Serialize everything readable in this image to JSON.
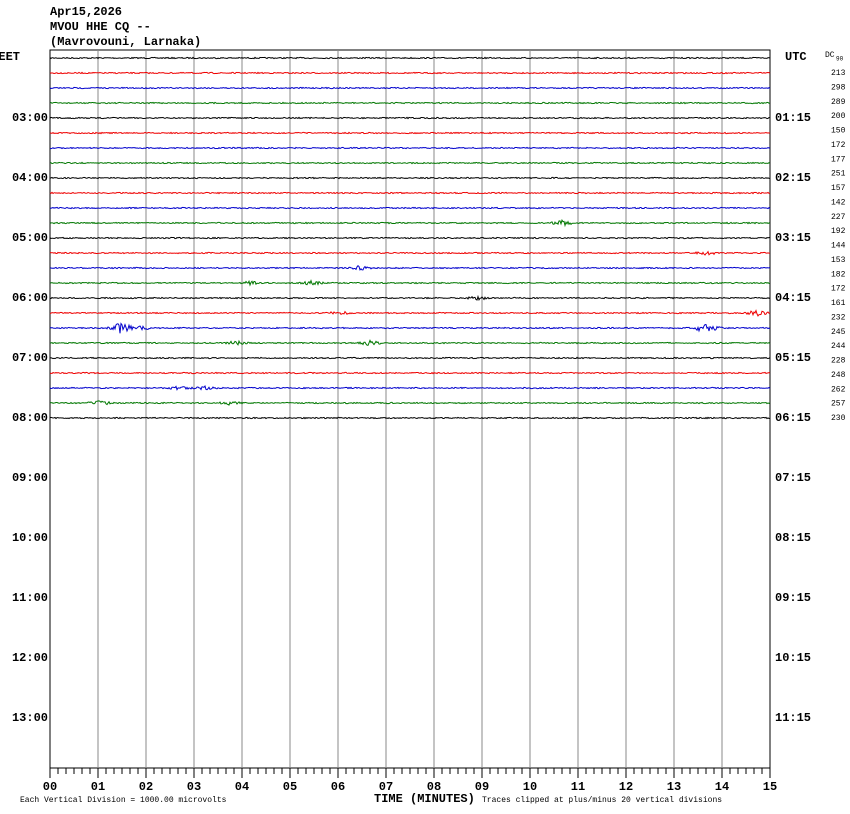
{
  "header": {
    "date": "Apr15,2026",
    "station": "MVOU HHE CQ --",
    "location": "(Mavrovouni, Larnaka)"
  },
  "left_axis": {
    "title": "EET",
    "labels": [
      "03:00",
      "04:00",
      "05:00",
      "06:00",
      "07:00",
      "08:00",
      "09:00",
      "10:00",
      "11:00",
      "12:00",
      "13:00"
    ]
  },
  "right_axis": {
    "title": "UTC",
    "labels": [
      "01:15",
      "02:15",
      "03:15",
      "04:15",
      "05:15",
      "06:15",
      "07:15",
      "08:15",
      "09:15",
      "10:15",
      "11:15"
    ]
  },
  "dc": {
    "title": "DC",
    "offset": "90",
    "values": [
      "213",
      "298",
      "289",
      "200",
      "150",
      "172",
      "177",
      "251",
      "157",
      "142",
      "227",
      "192",
      "144",
      "153",
      "182",
      "172",
      "161",
      "232",
      "245",
      "244",
      "228",
      "248",
      "262",
      "257",
      "230"
    ]
  },
  "x_axis": {
    "title": "TIME (MINUTES)",
    "labels": [
      "00",
      "01",
      "02",
      "03",
      "04",
      "05",
      "06",
      "07",
      "08",
      "09",
      "10",
      "11",
      "12",
      "13",
      "14",
      "15"
    ]
  },
  "footer": {
    "scale": "Each Vertical Division = 1000.00 microvolts",
    "clip": "Traces clipped at plus/minus 20 vertical divisions"
  }
}
